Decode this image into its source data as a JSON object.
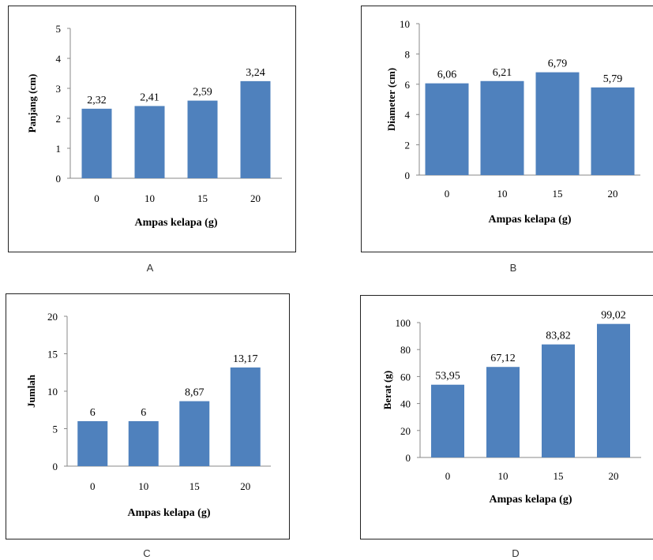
{
  "chart_data": [
    {
      "type": "bar",
      "panel_label": "A",
      "categories": [
        "0",
        "10",
        "15",
        "20"
      ],
      "values": [
        2.32,
        2.41,
        2.59,
        3.24
      ],
      "value_labels": [
        "2,32",
        "2,41",
        "2,59",
        "3,24"
      ],
      "yticks": [
        "0",
        "1",
        "2",
        "3",
        "4",
        "5"
      ],
      "ylim": [
        0,
        5
      ],
      "xlabel": "Ampas kelapa (g)",
      "ylabel": "Panjang (cm)",
      "bar_color": "#4f81bd",
      "grid": false
    },
    {
      "type": "bar",
      "panel_label": "B",
      "categories": [
        "0",
        "10",
        "15",
        "20"
      ],
      "values": [
        6.06,
        6.21,
        6.79,
        5.79
      ],
      "value_labels": [
        "6,06",
        "6,21",
        "6,79",
        "5,79"
      ],
      "yticks": [
        "0",
        "2",
        "4",
        "6",
        "8",
        "10"
      ],
      "ylim": [
        0,
        10
      ],
      "xlabel": "Ampas kelapa (g)",
      "ylabel": "Diameter (cm)",
      "bar_color": "#4f81bd",
      "grid": false
    },
    {
      "type": "bar",
      "panel_label": "C",
      "categories": [
        "0",
        "10",
        "15",
        "20"
      ],
      "values": [
        6,
        6,
        8.67,
        13.17
      ],
      "value_labels": [
        "6",
        "6",
        "8,67",
        "13,17"
      ],
      "yticks": [
        "0",
        "5",
        "10",
        "15",
        "20"
      ],
      "ylim": [
        0,
        20
      ],
      "xlabel": "Ampas kelapa (g)",
      "ylabel": "Jumlah",
      "bar_color": "#4f81bd",
      "grid": false
    },
    {
      "type": "bar",
      "panel_label": "D",
      "categories": [
        "0",
        "10",
        "15",
        "20"
      ],
      "values": [
        53.95,
        67.12,
        83.82,
        99.02
      ],
      "value_labels": [
        "53,95",
        "67,12",
        "83,82",
        "99,02"
      ],
      "yticks": [
        "0",
        "20",
        "40",
        "60",
        "80",
        "100"
      ],
      "ylim": [
        0,
        100
      ],
      "xlabel": "Ampas kelapa (g)",
      "ylabel": "Berat (g)",
      "bar_color": "#4f81bd",
      "grid": false
    }
  ]
}
